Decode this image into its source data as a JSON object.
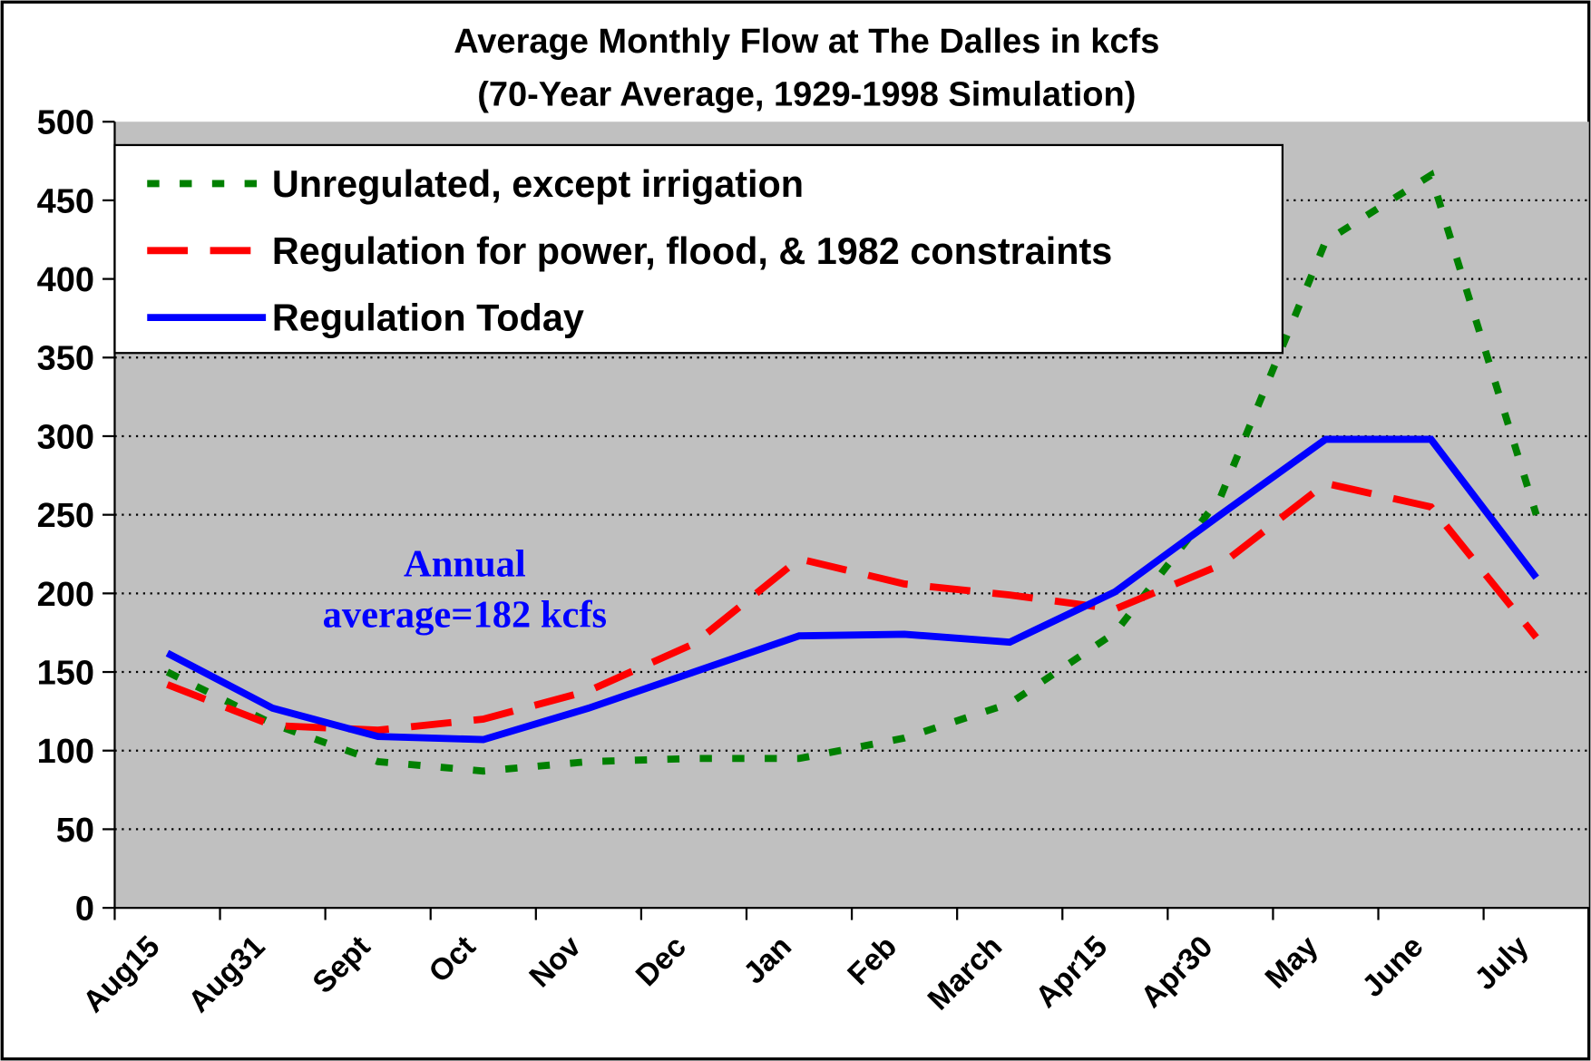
{
  "chart_data": {
    "type": "line",
    "title": "Average Monthly Flow at The Dalles in kcfs",
    "subtitle": "(70-Year Average, 1929-1998 Simulation)",
    "categories": [
      "Aug15",
      "Aug31",
      "Sept",
      "Oct",
      "Nov",
      "Dec",
      "Jan",
      "Feb",
      "March",
      "Apr15",
      "Apr30",
      "May",
      "June",
      "July"
    ],
    "series": [
      {
        "name": "Unregulated, except irrigation",
        "color": "#008000",
        "line_style": "dotted",
        "values": [
          150,
          117,
          93,
          87,
          93,
          95,
          95,
          108,
          130,
          175,
          261,
          424,
          466,
          250
        ]
      },
      {
        "name": "Regulation for power, flood, & 1982 constraints",
        "color": "#ff0000",
        "line_style": "dashed",
        "values": [
          142,
          116,
          113,
          120,
          138,
          168,
          222,
          206,
          199,
          190,
          218,
          270,
          255,
          172
        ]
      },
      {
        "name": "Regulation Today",
        "color": "#0000ff",
        "line_style": "solid",
        "values": [
          162,
          127,
          109,
          107,
          127,
          150,
          173,
          174,
          169,
          201,
          250,
          298,
          298,
          210
        ]
      }
    ],
    "ylim": [
      0,
      500
    ],
    "yticks": [
      0,
      50,
      100,
      150,
      200,
      250,
      300,
      350,
      400,
      450,
      500
    ],
    "grid": true,
    "legend": "upper left",
    "annotation": [
      "Annual",
      "average=182 kcfs"
    ]
  }
}
